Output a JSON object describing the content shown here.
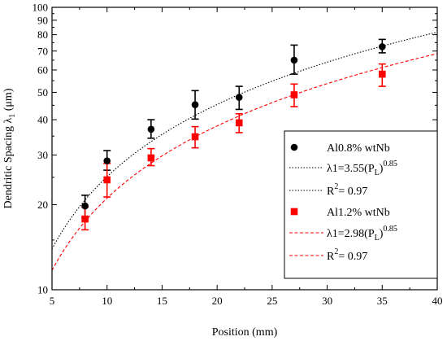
{
  "chart_data": {
    "type": "scatter",
    "xlabel": "Position (mm)",
    "ylabel": "Dendritic Spacing λ",
    "ylabel_sub": "1",
    "ylabel_unit": "(μm)",
    "x_scale": "linear",
    "y_scale": "log",
    "xlim": [
      5,
      40
    ],
    "ylim": [
      10,
      100
    ],
    "x_ticks": [
      "5",
      "10",
      "15",
      "20",
      "25",
      "30",
      "35",
      "40"
    ],
    "y_ticks": [
      "10",
      "20",
      "30",
      "40",
      "50",
      "60",
      "70",
      "80",
      "90",
      "100"
    ],
    "grid": false,
    "legend_position": "bottom-right",
    "series": [
      {
        "name": "Al0.8% wtNb",
        "marker": "circle",
        "color": "#000000",
        "x": [
          8,
          10,
          14,
          18,
          22,
          27,
          35
        ],
        "y": [
          19.8,
          28.6,
          37.0,
          45.2,
          48.0,
          65.0,
          72.5
        ],
        "err_low": [
          1.8,
          2.1,
          2.6,
          5.0,
          4.5,
          7.0,
          3.5
        ],
        "err_high": [
          1.8,
          2.5,
          3.0,
          5.5,
          4.5,
          8.5,
          4.5
        ]
      },
      {
        "name": "Al1.2% wtNb",
        "marker": "square",
        "color": "#ff0000",
        "x": [
          8,
          10,
          14,
          18,
          22,
          27,
          35
        ],
        "y": [
          17.8,
          24.5,
          29.3,
          34.8,
          39.0,
          49.0,
          58.0
        ],
        "err_low": [
          1.5,
          3.2,
          1.8,
          3.0,
          3.0,
          4.5,
          5.5
        ],
        "err_high": [
          1.8,
          3.5,
          2.3,
          3.0,
          3.0,
          4.5,
          5.0
        ]
      }
    ],
    "fits": [
      {
        "coef": 3.55,
        "exp": 0.85,
        "color": "#000000",
        "style": "dotted",
        "eq_prefix": "λ1=3.55(P",
        "eq_sub": "L",
        "eq_close": ")",
        "eq_sup": "0.85",
        "r2_prefix": "R",
        "r2_sup": "2",
        "r2_value": "= 0.97"
      },
      {
        "coef": 2.98,
        "exp": 0.85,
        "color": "#ff0000",
        "style": "dashed",
        "eq_prefix": "λ1=2.98(P",
        "eq_sub": "L",
        "eq_close": ")",
        "eq_sup": "0.85",
        "r2_prefix": "R",
        "r2_sup": "2",
        "r2_value": "= 0.97"
      }
    ]
  }
}
